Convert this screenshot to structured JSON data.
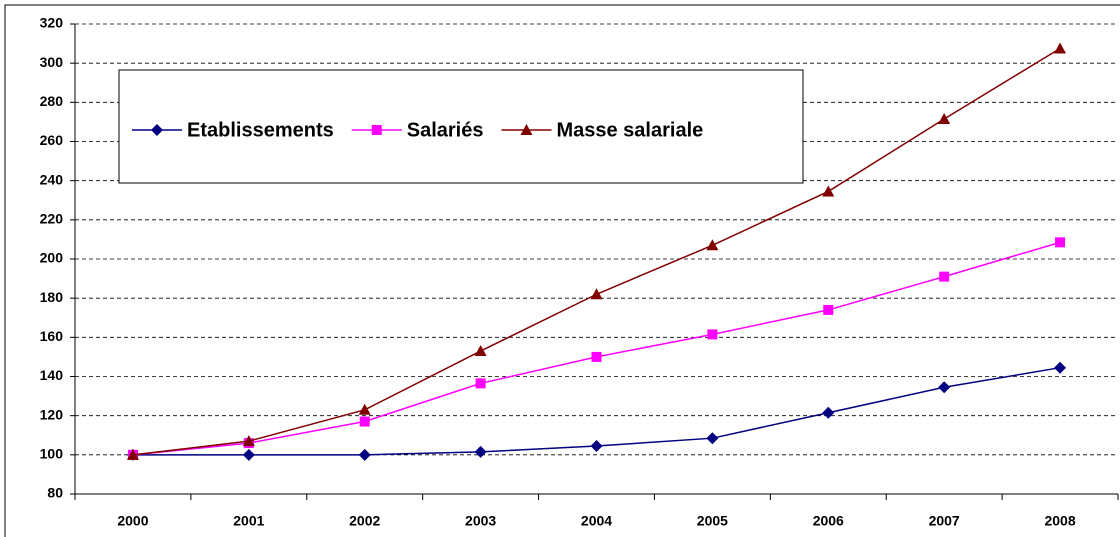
{
  "chart_data": {
    "type": "line",
    "categories": [
      "2000",
      "2001",
      "2002",
      "2003",
      "2004",
      "2005",
      "2006",
      "2007",
      "2008"
    ],
    "series": [
      {
        "name": "Etablissements",
        "color": "#000080",
        "marker": "diamond",
        "values": [
          100,
          100,
          100,
          101.5,
          104.5,
          108.5,
          121.5,
          134.5,
          144.5
        ]
      },
      {
        "name": "Salariés",
        "color": "#ff00ff",
        "marker": "square",
        "values": [
          100,
          106,
          117,
          136.5,
          150,
          161.5,
          174,
          191,
          208.5
        ]
      },
      {
        "name": "Masse salariale",
        "color": "#800000",
        "marker": "triangle",
        "values": [
          100,
          107,
          123,
          153,
          182,
          207,
          234.5,
          271.5,
          307.5
        ]
      }
    ],
    "ylim": [
      80,
      320
    ],
    "yticks": [
      80,
      100,
      120,
      140,
      160,
      180,
      200,
      220,
      240,
      260,
      280,
      300,
      320
    ],
    "grid": true,
    "legend": "top-left"
  }
}
